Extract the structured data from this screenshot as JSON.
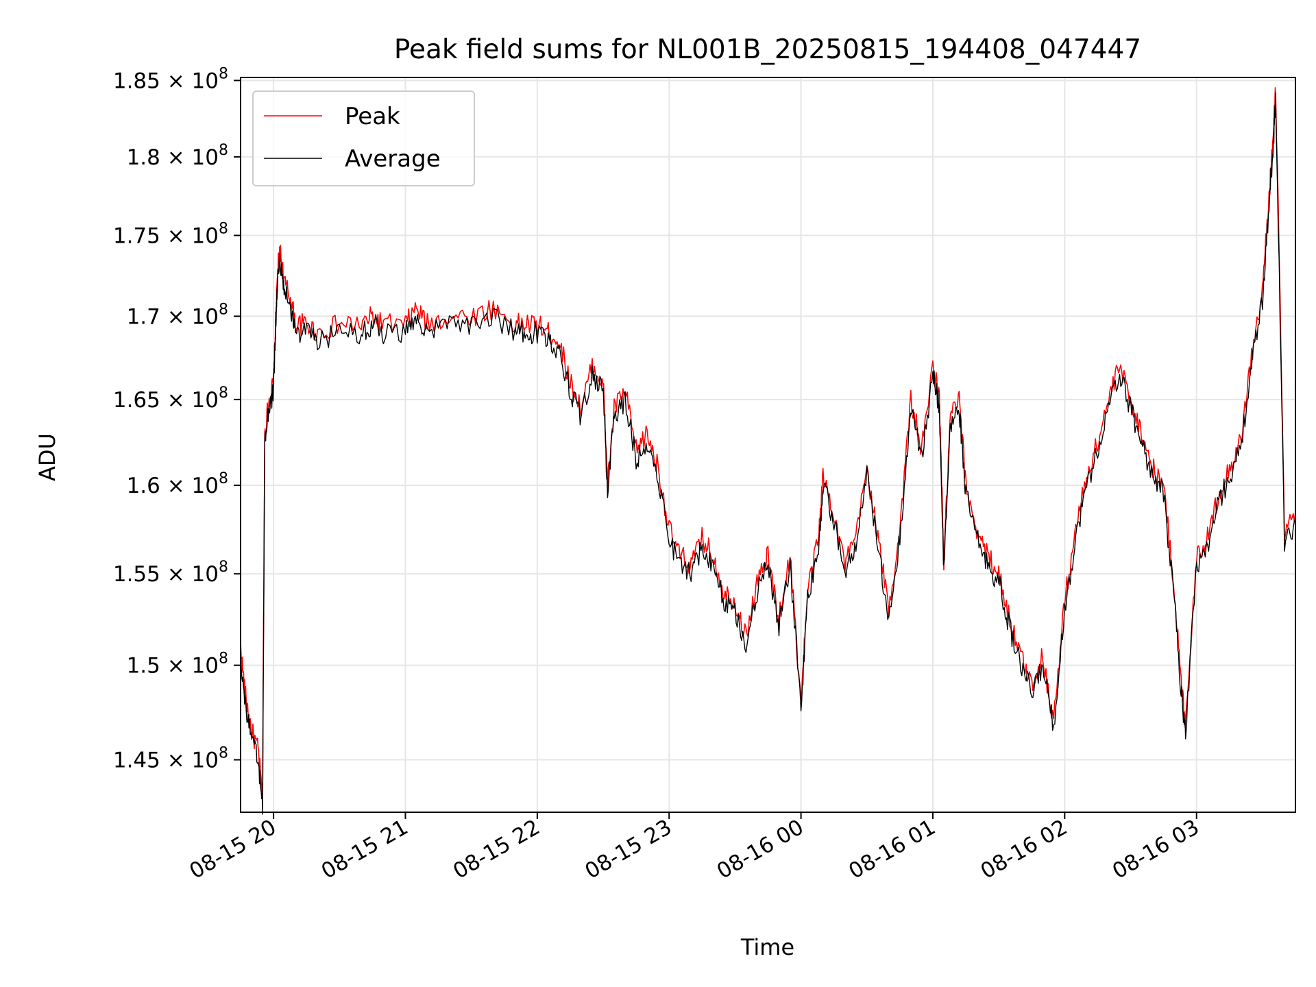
{
  "chart_data": {
    "type": "line",
    "title": "Peak field sums for NL001B_20250815_194408_047447",
    "xlabel": "Time",
    "ylabel": "ADU",
    "x_tick_labels": [
      "08-15 20",
      "08-15 21",
      "08-15 22",
      "08-15 23",
      "08-16 00",
      "08-16 01",
      "08-16 02",
      "08-16 03"
    ],
    "y_tick_labels": [
      "1.45 × 10^8",
      "1.5 × 10^8",
      "1.55 × 10^8",
      "1.6 × 10^8",
      "1.65 × 10^8",
      "1.7 × 10^8",
      "1.75 × 10^8",
      "1.8 × 10^8",
      "1.85 × 10^8"
    ],
    "y_tick_values": [
      145000000,
      150000000,
      155000000,
      160000000,
      165000000,
      170000000,
      175000000,
      180000000,
      185000000
    ],
    "y_scale": "log",
    "xlim": [
      "08-15 19:45",
      "08-16 03:45"
    ],
    "ylim": [
      142300000,
      185200000
    ],
    "grid": true,
    "legend_position": "top-left",
    "x": [
      "08-15 19:45",
      "08-15 19:47",
      "08-15 19:50",
      "08-15 19:53",
      "08-15 19:55",
      "08-15 19:56",
      "08-15 19:58",
      "08-15 20:00",
      "08-15 20:01",
      "08-15 20:02",
      "08-15 20:03",
      "08-15 20:05",
      "08-15 20:08",
      "08-15 20:10",
      "08-15 20:15",
      "08-15 20:20",
      "08-15 20:30",
      "08-15 20:40",
      "08-15 20:45",
      "08-15 20:50",
      "08-15 21:00",
      "08-15 21:05",
      "08-15 21:10",
      "08-15 21:20",
      "08-15 21:30",
      "08-15 21:40",
      "08-15 21:50",
      "08-15 21:55",
      "08-15 22:00",
      "08-15 22:05",
      "08-15 22:10",
      "08-15 22:15",
      "08-15 22:20",
      "08-15 22:25",
      "08-15 22:30",
      "08-15 22:32",
      "08-15 22:35",
      "08-15 22:40",
      "08-15 22:45",
      "08-15 22:50",
      "08-15 22:55",
      "08-15 23:00",
      "08-15 23:05",
      "08-15 23:10",
      "08-15 23:15",
      "08-15 23:20",
      "08-15 23:25",
      "08-15 23:30",
      "08-15 23:35",
      "08-15 23:40",
      "08-15 23:45",
      "08-15 23:50",
      "08-15 23:55",
      "08-16 00:00",
      "08-16 00:03",
      "08-16 00:08",
      "08-16 00:10",
      "08-16 00:15",
      "08-16 00:20",
      "08-16 00:25",
      "08-16 00:30",
      "08-16 00:35",
      "08-16 00:40",
      "08-16 00:45",
      "08-16 00:50",
      "08-16 00:55",
      "08-16 01:00",
      "08-16 01:03",
      "08-16 01:05",
      "08-16 01:08",
      "08-16 01:12",
      "08-16 01:15",
      "08-16 01:20",
      "08-16 01:25",
      "08-16 01:30",
      "08-16 01:35",
      "08-16 01:40",
      "08-16 01:45",
      "08-16 01:50",
      "08-16 01:55",
      "08-16 02:00",
      "08-16 02:05",
      "08-16 02:10",
      "08-16 02:15",
      "08-16 02:20",
      "08-16 02:25",
      "08-16 02:30",
      "08-16 02:35",
      "08-16 02:40",
      "08-16 02:45",
      "08-16 02:50",
      "08-16 02:53",
      "08-16 02:55",
      "08-16 03:00",
      "08-16 03:05",
      "08-16 03:10",
      "08-16 03:15",
      "08-16 03:20",
      "08-16 03:25",
      "08-16 03:30",
      "08-16 03:33",
      "08-16 03:35",
      "08-16 03:36",
      "08-16 03:40",
      "08-16 03:45"
    ],
    "series": [
      {
        "name": "Peak",
        "color": "#ff0000",
        "values": [
          151000000,
          148500000,
          146500000,
          145500000,
          143000000,
          163000000,
          165000000,
          166000000,
          170000000,
          173000000,
          174000000,
          172000000,
          171000000,
          169500000,
          169500000,
          169000000,
          169500000,
          169500000,
          170000000,
          169500000,
          169500000,
          170500000,
          169500000,
          170000000,
          170000000,
          170500000,
          169500000,
          169500000,
          169500000,
          169000000,
          168500000,
          166000000,
          164500000,
          167000000,
          166000000,
          160000000,
          164500000,
          165500000,
          162000000,
          163000000,
          161000000,
          157500000,
          156000000,
          155500000,
          157000000,
          156000000,
          154000000,
          153500000,
          151500000,
          154500000,
          156000000,
          152500000,
          156000000,
          148000000,
          154000000,
          157000000,
          160500000,
          158500000,
          155500000,
          157000000,
          161000000,
          157000000,
          153000000,
          157500000,
          165000000,
          162000000,
          167000000,
          165000000,
          155500000,
          164000000,
          165000000,
          160000000,
          157500000,
          156000000,
          155000000,
          152500000,
          150500000,
          149000000,
          150500000,
          147000000,
          153500000,
          157500000,
          160500000,
          162500000,
          165000000,
          167000000,
          165000000,
          163000000,
          161000000,
          160000000,
          154000000,
          149000000,
          147000000,
          156000000,
          157000000,
          159500000,
          161000000,
          162500000,
          167500000,
          171500000,
          177500000,
          181500000,
          184500000,
          157000000,
          158500000
        ]
      },
      {
        "name": "Average",
        "color": "#000000",
        "values": [
          150500000,
          148000000,
          146000000,
          145000000,
          142500000,
          162500000,
          164500000,
          165500000,
          169500000,
          172500000,
          173500000,
          171500000,
          170500000,
          169000000,
          169000000,
          168500000,
          169000000,
          169000000,
          169500000,
          169000000,
          169000000,
          170000000,
          169000000,
          169500000,
          169500000,
          170000000,
          169000000,
          169000000,
          169000000,
          168500000,
          168000000,
          165500000,
          164000000,
          166500000,
          165500000,
          159500000,
          164000000,
          165000000,
          161500000,
          162500000,
          160500000,
          157000000,
          155500000,
          155000000,
          156500000,
          155500000,
          153500000,
          153000000,
          151000000,
          154000000,
          155500000,
          152000000,
          155500000,
          147800000,
          153500000,
          156500000,
          160000000,
          158000000,
          155000000,
          156500000,
          160500000,
          156500000,
          152500000,
          157000000,
          164500000,
          161500000,
          166500000,
          164500000,
          155000000,
          163500000,
          164500000,
          159500000,
          157000000,
          155500000,
          154500000,
          152000000,
          150000000,
          148500000,
          150000000,
          146800000,
          153000000,
          157000000,
          160000000,
          162000000,
          164500000,
          166500000,
          164500000,
          162500000,
          160500000,
          159500000,
          153500000,
          148500000,
          146500000,
          155500000,
          156500000,
          159000000,
          160500000,
          162000000,
          167000000,
          171000000,
          177000000,
          181000000,
          184000000,
          156500000,
          158000000
        ]
      }
    ]
  }
}
